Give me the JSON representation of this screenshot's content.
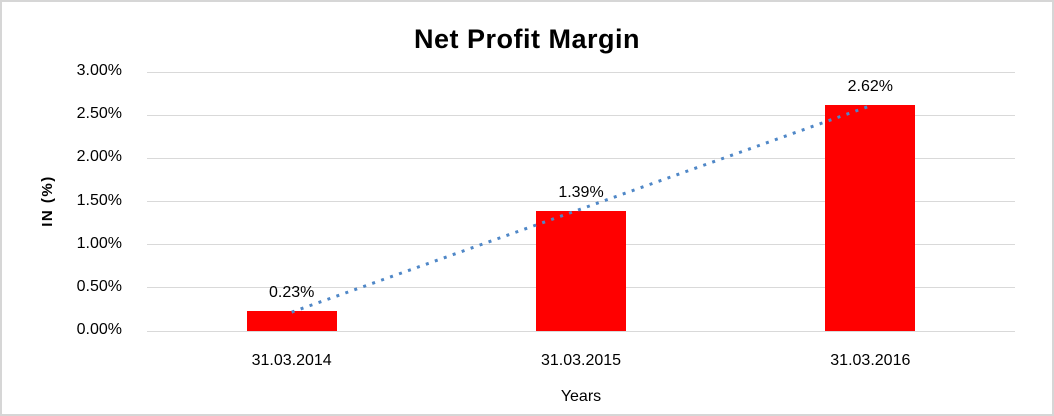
{
  "frame": {
    "background": "#ffffff",
    "border_color": "#d6d6d6"
  },
  "chart_data": {
    "type": "bar",
    "title": "Net Profit Margin",
    "xlabel": "Years",
    "ylabel": "IN (%)",
    "categories": [
      "31.03.2014",
      "31.03.2015",
      "31.03.2016"
    ],
    "values": [
      0.23,
      1.39,
      2.62
    ],
    "data_labels": [
      "0.23%",
      "1.39%",
      "2.62%"
    ],
    "ylim": [
      0,
      3
    ],
    "ytick_labels": [
      "0.00%",
      "0.50%",
      "1.00%",
      "1.50%",
      "2.00%",
      "2.50%",
      "3.00%"
    ],
    "grid": true,
    "legend": false,
    "bar_color": "#ff0000",
    "gridline_color": "#d9d9d9",
    "trendline": {
      "type": "linear",
      "style": "dotted",
      "color": "#4f87c7"
    }
  }
}
